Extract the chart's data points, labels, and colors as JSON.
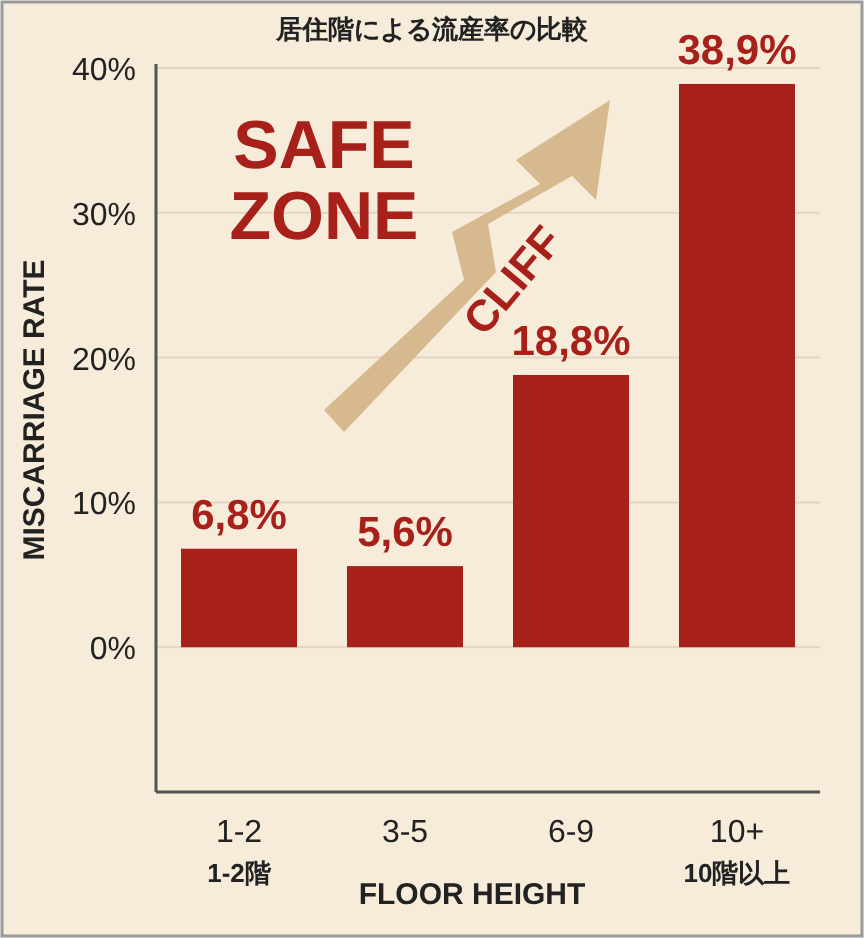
{
  "chart_data": {
    "type": "bar",
    "title": "居住階による流産率の比較",
    "xlabel": "FLOOR HEIGHT",
    "ylabel": "MISCARRIAGE RATE",
    "categories": [
      "1-2\n1-2階",
      "3-5",
      "6-9",
      "10+\n10階以上"
    ],
    "values": [
      6.8,
      5.6,
      18.8,
      38.9
    ],
    "value_labels": [
      "6,8%",
      "5,6%",
      "18,8%",
      "38,9%"
    ],
    "color": "#a8201a",
    "ylim": [
      -10,
      40
    ],
    "yticks": [
      {
        "value": 0,
        "label": "0%"
      },
      {
        "value": 10,
        "label": "10%"
      },
      {
        "value": 20,
        "label": "20%"
      },
      {
        "value": 30,
        "label": "30%"
      },
      {
        "value": 40,
        "label": "40%"
      }
    ],
    "grid": "y",
    "annotations": [
      "SAFE\nZONE",
      "CLIFF"
    ]
  }
}
